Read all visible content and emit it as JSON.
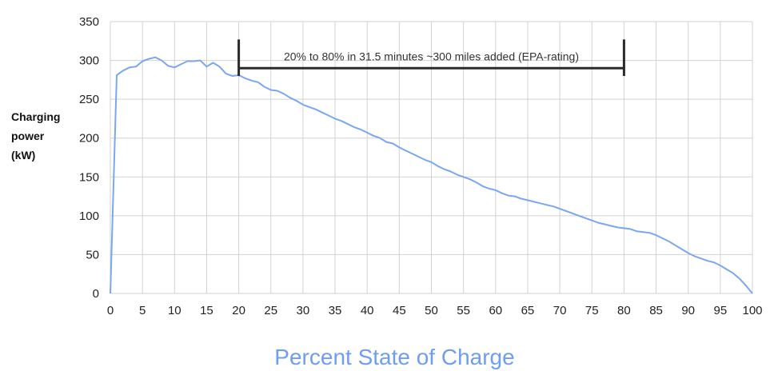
{
  "chart_data": {
    "type": "line",
    "ylabel_lines": [
      "Charging",
      "power",
      "(kW)"
    ],
    "xlabel": "Percent State of Charge",
    "xlim": [
      0,
      100
    ],
    "ylim": [
      0,
      350
    ],
    "xticks": [
      0,
      5,
      10,
      15,
      20,
      25,
      30,
      35,
      40,
      45,
      50,
      55,
      60,
      65,
      70,
      75,
      80,
      85,
      90,
      95,
      100
    ],
    "yticks": [
      0,
      50,
      100,
      150,
      200,
      250,
      300,
      350
    ],
    "grid": true,
    "line_color": "#7aa7f0",
    "series": [
      {
        "x": [
          0,
          1,
          2,
          3,
          4,
          5,
          6,
          7,
          8,
          9,
          10,
          11,
          12,
          13,
          14,
          15,
          16,
          17,
          18,
          19,
          20,
          21,
          22,
          23,
          24,
          25,
          26,
          27,
          28,
          29,
          30,
          31,
          32,
          33,
          34,
          35,
          36,
          37,
          38,
          39,
          40,
          41,
          42,
          43,
          44,
          45,
          46,
          47,
          48,
          49,
          50,
          51,
          52,
          53,
          54,
          55,
          56,
          57,
          58,
          59,
          60,
          61,
          62,
          63,
          64,
          65,
          66,
          67,
          68,
          69,
          70,
          71,
          72,
          73,
          74,
          75,
          76,
          77,
          78,
          79,
          80,
          81,
          82,
          83,
          84,
          85,
          86,
          87,
          88,
          89,
          90,
          91,
          92,
          93,
          94,
          95,
          96,
          97,
          98,
          99,
          100
        ],
        "y": [
          0,
          281,
          287,
          291,
          292,
          299,
          302,
          304,
          300,
          293,
          291,
          295,
          299,
          299,
          300,
          292,
          297,
          292,
          283,
          280,
          281,
          277,
          274,
          272,
          266,
          262,
          261,
          257,
          252,
          248,
          243,
          240,
          237,
          233,
          229,
          225,
          222,
          218,
          214,
          211,
          207,
          203,
          200,
          195,
          193,
          188,
          184,
          180,
          176,
          172,
          169,
          164,
          160,
          157,
          153,
          150,
          147,
          143,
          138,
          135,
          133,
          129,
          126,
          125,
          122,
          120,
          118,
          116,
          114,
          112,
          109,
          106,
          103,
          100,
          97,
          94,
          91,
          89,
          87,
          85,
          84,
          83,
          80,
          79,
          78,
          75,
          71,
          67,
          62,
          57,
          52,
          48,
          45,
          42,
          40,
          36,
          31,
          26,
          19,
          10,
          0
        ]
      }
    ],
    "annotations": [
      {
        "text": "20% to 80% in 31.5 minutes ~300 miles added  (EPA-rating)",
        "x_start": 20,
        "x_end": 80,
        "y": 290,
        "bracket_top": 327,
        "bracket_bottom": 280
      }
    ]
  }
}
